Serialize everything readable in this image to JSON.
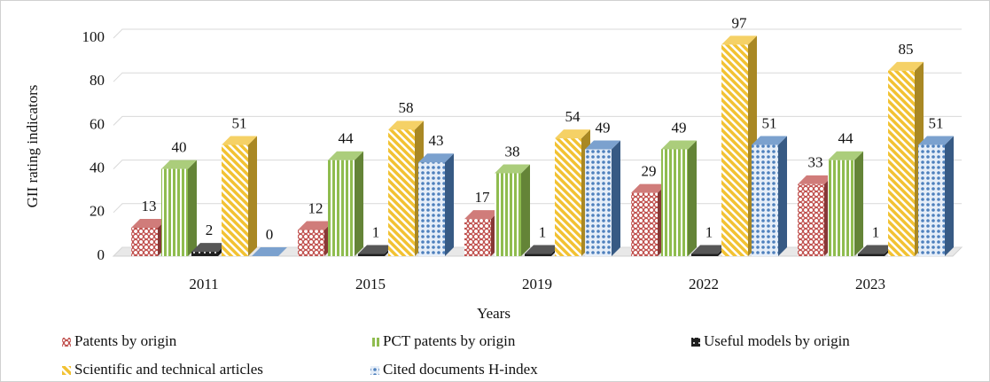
{
  "chart_data": {
    "type": "bar3d",
    "x_label": "Years",
    "y_label": "GII rating indicators",
    "categories": [
      "2011",
      "2015",
      "2019",
      "2022",
      "2023"
    ],
    "series": [
      {
        "name": "Patents by origin",
        "color": "#c0504d",
        "values": [
          13,
          12,
          17,
          29,
          33
        ]
      },
      {
        "name": "PCT patents by origin",
        "color": "#8fbc4f",
        "values": [
          40,
          44,
          38,
          49,
          44
        ]
      },
      {
        "name": "Useful models by origin",
        "color": "#1f1f1f",
        "values": [
          2,
          1,
          1,
          1,
          1
        ]
      },
      {
        "name": "Scientific and technical articles",
        "color": "#f2c233",
        "values": [
          51,
          58,
          54,
          97,
          85
        ]
      },
      {
        "name": "Cited documents H-index",
        "color": "#4f81bd",
        "values": [
          0,
          43,
          49,
          51,
          51
        ]
      }
    ],
    "ylim": [
      0,
      100
    ],
    "yticks": [
      0,
      20,
      40,
      60,
      80,
      100
    ],
    "grid": true
  }
}
